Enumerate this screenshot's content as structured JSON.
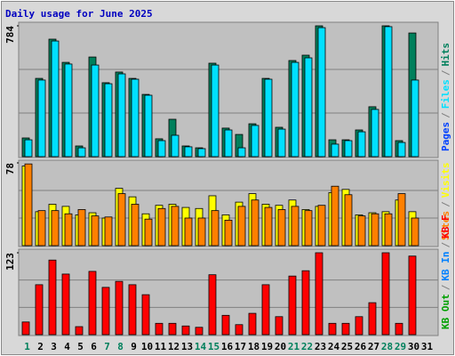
{
  "chart_data": [
    {
      "type": "bar",
      "title": "Daily usage for June 2025",
      "ylim": [
        0,
        784
      ],
      "yticks": [
        784
      ],
      "legend_separator": "/",
      "other_legend_entries": [
        {
          "name": "Pages",
          "color": "#0040ff"
        }
      ],
      "series": [
        {
          "name": "Files",
          "color": "#00e0ff",
          "values": [
            101,
            459,
            693,
            555,
            53,
            549,
            437,
            496,
            464,
            368,
            96,
            128,
            59,
            48,
            549,
            160,
            53,
            187,
            464,
            165,
            565,
            592,
            773,
            75,
            96,
            149,
            283,
            779,
            85,
            459,
            0
          ]
        },
        {
          "name": "Hits",
          "color": "#00805c",
          "values": [
            112,
            469,
            704,
            565,
            64,
            597,
            443,
            507,
            469,
            373,
            107,
            224,
            64,
            53,
            560,
            171,
            133,
            197,
            469,
            176,
            576,
            608,
            784,
            101,
            101,
            160,
            299,
            784,
            96,
            741,
            0
          ]
        }
      ]
    },
    {
      "type": "bar",
      "ylim": [
        0,
        78
      ],
      "yticks": [
        78
      ],
      "legend_separator": "/",
      "series": [
        {
          "name": "Sites",
          "color": "#ff8000",
          "values": [
            77,
            33,
            33,
            30,
            34,
            28,
            27,
            49,
            39,
            25,
            35,
            37,
            26,
            26,
            33,
            24,
            37,
            43,
            36,
            34,
            37,
            33,
            38,
            56,
            48,
            28,
            30,
            30,
            49,
            26,
            0
          ]
        },
        {
          "name": "Visits",
          "color": "#ffff00",
          "values": [
            75,
            32,
            39,
            37,
            29,
            31,
            26,
            54,
            46,
            30,
            38,
            39,
            36,
            35,
            47,
            29,
            41,
            49,
            39,
            38,
            43,
            34,
            37,
            50,
            53,
            29,
            31,
            32,
            43,
            32,
            0
          ]
        }
      ]
    },
    {
      "type": "bar",
      "ylim": [
        0,
        123
      ],
      "yticks": [
        123
      ],
      "legend_separator": "/",
      "categories": [
        "1",
        "2",
        "3",
        "4",
        "5",
        "6",
        "7",
        "8",
        "9",
        "10",
        "11",
        "12",
        "13",
        "14",
        "15",
        "16",
        "17",
        "18",
        "19",
        "20",
        "21",
        "22",
        "23",
        "24",
        "25",
        "26",
        "27",
        "28",
        "29",
        "30",
        "31"
      ],
      "highlight_categories": [
        0,
        6,
        7,
        13,
        14,
        20,
        21,
        27,
        28
      ],
      "highlight_color": "#00805c",
      "other_legend_entries": [
        {
          "name": "KB Out",
          "color": "#00a000"
        },
        {
          "name": "KB In",
          "color": "#0080ff"
        }
      ],
      "series": [
        {
          "name": "KB F",
          "color": "#ff0000",
          "values": [
            19,
            75,
            112,
            91,
            12,
            95,
            71,
            80,
            75,
            60,
            17,
            17,
            13,
            11,
            90,
            29,
            15,
            32,
            75,
            27,
            88,
            96,
            123,
            17,
            17,
            27,
            48,
            123,
            17,
            118,
            0
          ]
        }
      ]
    }
  ]
}
